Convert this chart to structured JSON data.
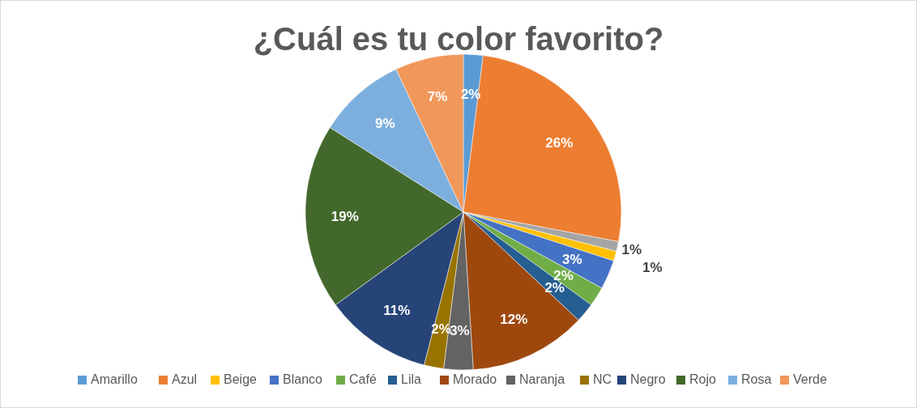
{
  "chart_data": {
    "type": "pie",
    "title": "¿Cuál es tu color favorito?",
    "categories": [
      "Amarillo",
      "Azul",
      null,
      "Beige",
      "Blanco",
      "Café",
      "Lila",
      "Morado",
      "Naranja",
      "NC",
      "Negro",
      "Rojo",
      "Rosa",
      "Verde"
    ],
    "values": [
      2,
      26,
      1,
      1,
      3,
      2,
      2,
      12,
      3,
      2,
      11,
      19,
      9,
      7
    ],
    "colors": [
      "#5b9bd5",
      "#ed7d31",
      "#a5a5a5",
      "#ffc000",
      "#4472c4",
      "#70ad47",
      "#255e91",
      "#9e480e",
      "#636363",
      "#997300",
      "#264478",
      "#43682b",
      "#7cafdd",
      "#f1975a"
    ],
    "value_labels": [
      "2%",
      "26%",
      "1%",
      "1%",
      "3%",
      "2%",
      "2%",
      "12%",
      "3%",
      "2%",
      "11%",
      "19%",
      "9%",
      "7%"
    ],
    "legend": "bottom"
  }
}
